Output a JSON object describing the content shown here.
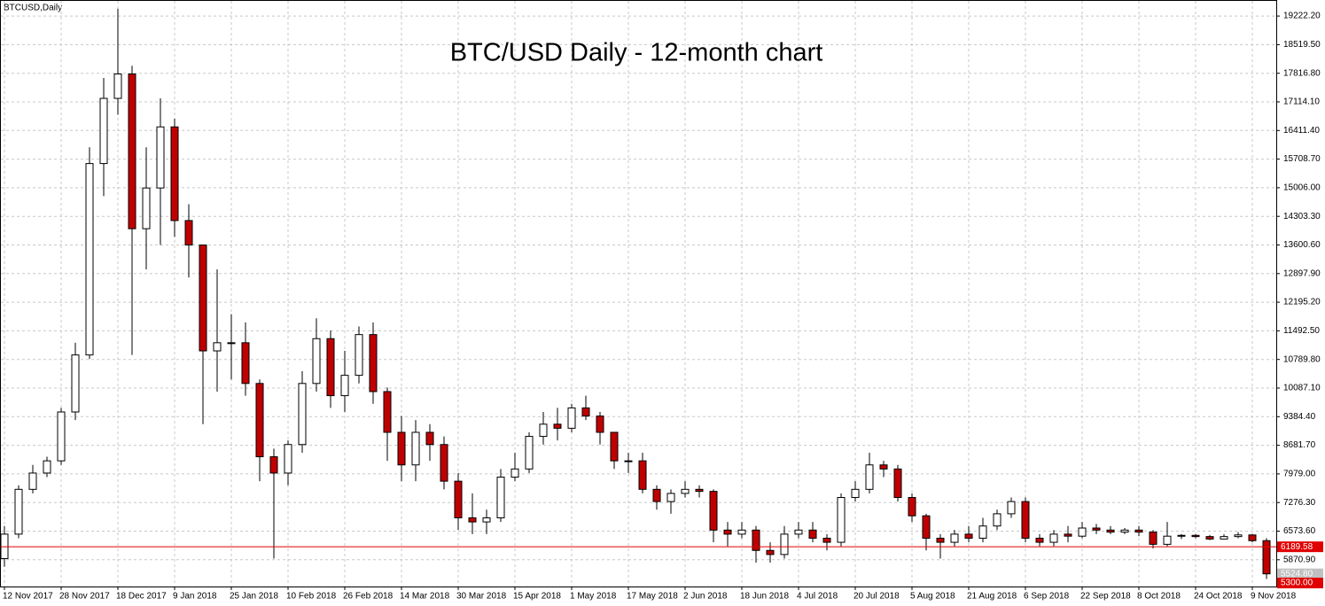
{
  "chart_data": {
    "type": "candlestick",
    "title": "BTC/USD Daily - 12-month chart",
    "symbol_label": "BTCUSD,Daily",
    "colors": {
      "up_fill": "#ffffff",
      "down_fill": "#c00000",
      "outline": "#000000"
    },
    "grid": true,
    "categories": [
      "12 Nov 2017",
      null,
      null,
      null,
      "28 Nov 2017",
      null,
      null,
      null,
      "18 Dec 2017",
      null,
      null,
      null,
      "9 Jan 2018",
      null,
      null,
      null,
      "25 Jan 2018",
      null,
      null,
      null,
      "10 Feb 2018",
      null,
      null,
      null,
      "26 Feb 2018",
      null,
      null,
      null,
      "14 Mar 2018",
      null,
      null,
      null,
      "30 Mar 2018",
      null,
      null,
      null,
      "15 Apr 2018",
      null,
      null,
      null,
      "1 May 2018",
      null,
      null,
      null,
      "17 May 2018",
      null,
      null,
      null,
      "2 Jun 2018",
      null,
      null,
      null,
      "18 Jun 2018",
      null,
      null,
      null,
      "4 Jul 2018",
      null,
      null,
      null,
      "20 Jul 2018",
      null,
      null,
      null,
      "5 Aug 2018",
      null,
      null,
      null,
      "21 Aug 2018",
      null,
      null,
      null,
      "6 Sep 2018",
      null,
      null,
      null,
      "22 Sep 2018",
      null,
      null,
      null,
      "8 Oct 2018",
      null,
      null,
      null,
      "24 Oct 2018",
      null,
      null,
      null,
      "9 Nov 2018",
      null
    ],
    "open": [
      5900,
      6500,
      7600,
      8000,
      8300,
      9500,
      10900,
      15600,
      17200,
      17800,
      14000,
      15000,
      16500,
      14200,
      13600,
      11000,
      11200,
      11200,
      10200,
      8400,
      8000,
      8700,
      10200,
      11300,
      9900,
      10400,
      11400,
      10000,
      9000,
      8200,
      9000,
      8700,
      7800,
      6900,
      6800,
      6900,
      7900,
      8100,
      8900,
      9200,
      9100,
      9600,
      9400,
      9000,
      8300,
      8300,
      7600,
      7300,
      7500,
      7600,
      7550,
      6600,
      6500,
      6600,
      6100,
      6000,
      6500,
      6600,
      6400,
      6300,
      7400,
      7600,
      8200,
      8100,
      7400,
      6950,
      6400,
      6300,
      6500,
      6400,
      6700,
      7000,
      7300,
      6400,
      6300,
      6500,
      6450,
      6650,
      6600,
      6550,
      6600,
      6550,
      6250,
      6450,
      6470,
      6440,
      6380,
      6440,
      6480,
      6340
    ],
    "high": [
      6700,
      7700,
      8200,
      8400,
      9600,
      11200,
      16000,
      17700,
      19400,
      18000,
      16000,
      17200,
      16700,
      14600,
      13600,
      13000,
      11900,
      11700,
      10300,
      8600,
      8800,
      10500,
      11800,
      11500,
      11000,
      11600,
      11700,
      10100,
      9400,
      9300,
      9200,
      8900,
      8000,
      7500,
      7100,
      8100,
      8500,
      9000,
      9500,
      9600,
      9700,
      9900,
      9500,
      9000,
      8500,
      8500,
      7700,
      7600,
      7800,
      7700,
      7600,
      6800,
      6800,
      6700,
      6300,
      6700,
      6800,
      6800,
      6500,
      7500,
      7800,
      8500,
      8300,
      8200,
      7500,
      7000,
      6500,
      6600,
      6700,
      6900,
      7100,
      7400,
      7400,
      6500,
      6600,
      6700,
      6800,
      6750,
      6700,
      6650,
      6700,
      6600,
      6800,
      6500,
      6500,
      6480,
      6500,
      6550,
      6500,
      6400
    ],
    "low": [
      5700,
      6400,
      7500,
      7900,
      8200,
      9300,
      10800,
      14800,
      16800,
      10900,
      13000,
      13600,
      13800,
      12800,
      9200,
      10000,
      10300,
      9900,
      7800,
      5900,
      7700,
      8500,
      10000,
      9600,
      9500,
      10200,
      9700,
      8300,
      7800,
      7800,
      8300,
      7600,
      6600,
      6500,
      6500,
      6800,
      7800,
      8000,
      8700,
      8800,
      9000,
      9300,
      8700,
      8100,
      8000,
      7500,
      7100,
      7000,
      7400,
      7400,
      6300,
      6200,
      6400,
      5800,
      5800,
      5900,
      6400,
      6300,
      6100,
      6200,
      7300,
      7500,
      7900,
      7300,
      6800,
      6100,
      5900,
      6200,
      6300,
      6300,
      6600,
      6900,
      6300,
      6200,
      6200,
      6300,
      6400,
      6500,
      6500,
      6500,
      6450,
      6150,
      6200,
      6380,
      6400,
      6350,
      6370,
      6400,
      6300,
      5400
    ],
    "close": [
      6500,
      7600,
      8000,
      8300,
      9500,
      10900,
      15600,
      17200,
      17800,
      14000,
      15000,
      16500,
      14200,
      13600,
      11000,
      11200,
      11200,
      10200,
      8400,
      8000,
      8700,
      10200,
      11300,
      9900,
      10400,
      11400,
      10000,
      9000,
      8200,
      9000,
      8700,
      7800,
      6900,
      6800,
      6900,
      7900,
      8100,
      8900,
      9200,
      9100,
      9600,
      9400,
      9000,
      8300,
      8300,
      7600,
      7300,
      7500,
      7600,
      7550,
      6600,
      6500,
      6600,
      6100,
      6000,
      6500,
      6600,
      6400,
      6300,
      7400,
      7600,
      8200,
      8100,
      7400,
      6950,
      6400,
      6300,
      6500,
      6400,
      6700,
      7000,
      7300,
      6400,
      6300,
      6500,
      6450,
      6650,
      6600,
      6550,
      6600,
      6550,
      6250,
      6450,
      6470,
      6440,
      6380,
      6440,
      6480,
      6340,
      5525
    ],
    "ylim": [
      5214,
      19594
    ],
    "yticks": [
      {
        "value": 5870.9,
        "label": "5870.90"
      },
      {
        "value": 6573.6,
        "label": "6573.60"
      },
      {
        "value": 7276.3,
        "label": "7276.30"
      },
      {
        "value": 7979,
        "label": "7979.00"
      },
      {
        "value": 8681.7,
        "label": "8681.70"
      },
      {
        "value": 9384.4,
        "label": "9384.40"
      },
      {
        "value": 10087.1,
        "label": "10087.10"
      },
      {
        "value": 10789.8,
        "label": "10789.80"
      },
      {
        "value": 11492.5,
        "label": "11492.50"
      },
      {
        "value": 12195.2,
        "label": "12195.20"
      },
      {
        "value": 12897.9,
        "label": "12897.90"
      },
      {
        "value": 13600.6,
        "label": "13600.60"
      },
      {
        "value": 14303.3,
        "label": "14303.30"
      },
      {
        "value": 15006,
        "label": "15006.00"
      },
      {
        "value": 15708.7,
        "label": "15708.70"
      },
      {
        "value": 16411.4,
        "label": "16411.40"
      },
      {
        "value": 17114.1,
        "label": "17114.10"
      },
      {
        "value": 17816.8,
        "label": "17816.80"
      },
      {
        "value": 18519.5,
        "label": "18519.50"
      },
      {
        "value": 19222.2,
        "label": "19222.20"
      }
    ],
    "price_labels": [
      {
        "value": 6189.58,
        "label": "6189.58",
        "color": "#e00000",
        "line": true
      },
      {
        "value": 5524.8,
        "label": "5524.80",
        "color": "#c0c0c0",
        "line": false
      },
      {
        "value": 5300,
        "label": "5300.00",
        "color": "#e00000",
        "line": false
      }
    ]
  }
}
